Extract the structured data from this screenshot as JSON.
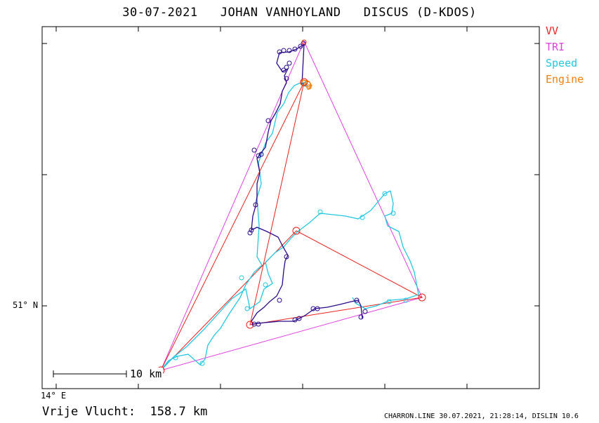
{
  "header": {
    "title": "30-07-2021   JOHAN VANHOYLAND   DISCUS (D-KDOS)"
  },
  "legend": {
    "items": [
      {
        "label": "VV",
        "color": "#e8201e"
      },
      {
        "label": "TRI",
        "color": "#e040e0"
      },
      {
        "label": "Speed",
        "color": "#22c8e0"
      },
      {
        "label": "Engine",
        "color": "#f08010"
      }
    ]
  },
  "axes": {
    "lat_label": "51° N",
    "lon_label": "14° E"
  },
  "scale_bar": {
    "label": "10 km"
  },
  "summary": {
    "distance_text": "Vrije Vlucht:  158.7 km"
  },
  "footer": {
    "text": "CHARRON.LINE 30.07.2021, 21:28:14, DISLIN 10.6"
  },
  "colors": {
    "frame": "#000000",
    "climb_track": "#2a0a8a",
    "speed_track": "#22c8e0",
    "engine_track": "#f08010",
    "free_flight": "#e8201e",
    "triangle": "#e040e0"
  }
}
